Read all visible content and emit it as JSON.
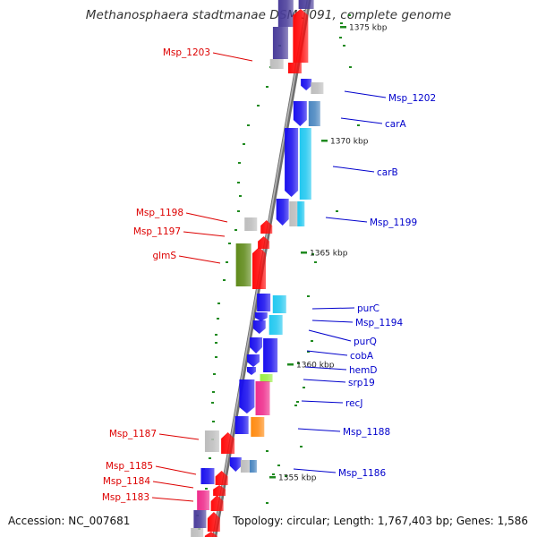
{
  "title": "Methanosphaera stadtmanae DSM 3091, complete genome",
  "accession": "Accession: NC_007681",
  "summary": "Topology: circular; Length: 1,767,403 bp; Genes: 1,586",
  "colors": {
    "backbone": "#8a8a8a",
    "tick": "#1f8a1f",
    "label_left": "#dd0000",
    "label_right": "#0000cc",
    "blue": "#1a10ee",
    "cyan": "#22c8f0",
    "steel": "#4a86c0",
    "navy": "#4a3d9a",
    "gray": "#bdbdbd",
    "red": "#ff0a0a",
    "olive": "#5f8a1a",
    "pink": "#ee2d8c",
    "orange": "#ff8a10",
    "lime": "#99ee44"
  },
  "scale_labels": [
    "1375 kbp",
    "1370 kbp",
    "1365 kbp",
    "1360 kbp",
    "1355 kbp"
  ],
  "genes_left": [
    "Msp_1203",
    "Msp_1198",
    "Msp_1197",
    "glmS",
    "Msp_1187",
    "Msp_1185",
    "Msp_1184",
    "Msp_1183"
  ],
  "genes_right": [
    "Msp_1202",
    "carA",
    "carB",
    "Msp_1199",
    "purC",
    "Msp_1194",
    "purQ",
    "cobA",
    "hemD",
    "srp19",
    "recJ",
    "Msp_1188",
    "Msp_1186"
  ]
}
